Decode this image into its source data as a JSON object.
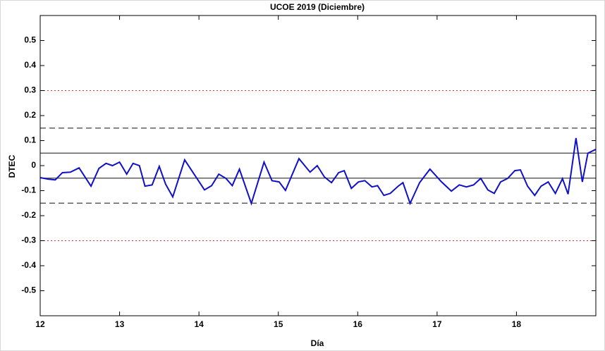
{
  "chart_data": {
    "type": "line",
    "title": "UCOE 2019 (Diciembre)",
    "xlabel": "Día",
    "ylabel": "DTEC",
    "xlim": [
      12,
      19
    ],
    "ylim": [
      -0.6,
      0.6
    ],
    "xticks": [
      12,
      13,
      14,
      15,
      16,
      17,
      18
    ],
    "yticks": [
      -0.5,
      -0.4,
      -0.3,
      -0.2,
      -0.1,
      0,
      0.1,
      0.2,
      0.3,
      0.4,
      0.5
    ],
    "reference_lines": [
      {
        "value": 0.05,
        "style": "solid",
        "color": "#404040"
      },
      {
        "value": -0.05,
        "style": "solid",
        "color": "#404040"
      },
      {
        "value": 0.15,
        "style": "dashed",
        "color": "#404040"
      },
      {
        "value": -0.15,
        "style": "dashed",
        "color": "#404040"
      },
      {
        "value": 0.3,
        "style": "dotted",
        "color": "#e03030"
      },
      {
        "value": -0.3,
        "style": "dotted",
        "color": "#e03030"
      }
    ],
    "series": [
      {
        "color": "#1010c8",
        "x": [
          12.0,
          12.1,
          12.19,
          12.28,
          12.38,
          12.49,
          12.64,
          12.74,
          12.83,
          12.91,
          13.0,
          13.09,
          13.17,
          13.25,
          13.32,
          13.41,
          13.5,
          13.58,
          13.67,
          13.82,
          14.07,
          14.16,
          14.25,
          14.34,
          14.42,
          14.51,
          14.66,
          14.82,
          14.92,
          15.01,
          15.09,
          15.26,
          15.4,
          15.49,
          15.58,
          15.67,
          15.76,
          15.83,
          15.92,
          16.01,
          16.09,
          16.18,
          16.25,
          16.33,
          16.41,
          16.51,
          16.57,
          16.66,
          16.78,
          16.91,
          17.05,
          17.18,
          17.28,
          17.37,
          17.46,
          17.55,
          17.64,
          17.72,
          17.8,
          17.89,
          17.98,
          18.05,
          18.14,
          18.23,
          18.31,
          18.4,
          18.49,
          18.58,
          18.65,
          18.75,
          18.83,
          18.9,
          19.0
        ],
        "values": [
          -0.048,
          -0.054,
          -0.057,
          -0.028,
          -0.026,
          -0.009,
          -0.082,
          -0.011,
          0.009,
          0.0,
          0.014,
          -0.034,
          0.009,
          0.0,
          -0.082,
          -0.077,
          -0.003,
          -0.074,
          -0.125,
          0.023,
          -0.097,
          -0.08,
          -0.034,
          -0.051,
          -0.08,
          -0.014,
          -0.151,
          0.014,
          -0.06,
          -0.065,
          -0.099,
          0.028,
          -0.026,
          0.0,
          -0.045,
          -0.068,
          -0.028,
          -0.02,
          -0.091,
          -0.065,
          -0.06,
          -0.085,
          -0.08,
          -0.119,
          -0.111,
          -0.082,
          -0.068,
          -0.151,
          -0.068,
          -0.014,
          -0.063,
          -0.102,
          -0.077,
          -0.085,
          -0.077,
          -0.051,
          -0.097,
          -0.111,
          -0.065,
          -0.051,
          -0.02,
          -0.017,
          -0.082,
          -0.119,
          -0.082,
          -0.065,
          -0.111,
          -0.052,
          -0.114,
          0.11,
          -0.065,
          0.05,
          0.065
        ]
      }
    ]
  }
}
